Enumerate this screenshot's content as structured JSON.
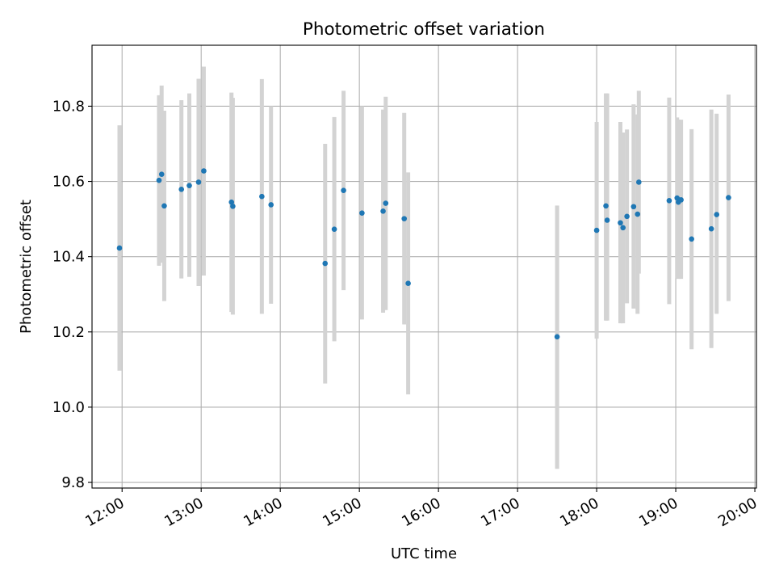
{
  "chart_data": {
    "type": "scatter",
    "title": "Photometric offset variation",
    "xlabel": "UTC time",
    "ylabel": "Photometric offset",
    "x_unit": "hours (UTC)",
    "xlim": [
      11.62,
      20.02
    ],
    "ylim": [
      9.785,
      10.962
    ],
    "grid": true,
    "x_ticks": [
      {
        "value": 12,
        "label": "12:00"
      },
      {
        "value": 13,
        "label": "13:00"
      },
      {
        "value": 14,
        "label": "14:00"
      },
      {
        "value": 15,
        "label": "15:00"
      },
      {
        "value": 16,
        "label": "16:00"
      },
      {
        "value": 17,
        "label": "17:00"
      },
      {
        "value": 18,
        "label": "18:00"
      },
      {
        "value": 19,
        "label": "19:00"
      },
      {
        "value": 20,
        "label": "20:00"
      }
    ],
    "y_ticks": [
      {
        "value": 9.8,
        "label": "9.8"
      },
      {
        "value": 10.0,
        "label": "10.0"
      },
      {
        "value": 10.2,
        "label": "10.2"
      },
      {
        "value": 10.4,
        "label": "10.4"
      },
      {
        "value": 10.6,
        "label": "10.6"
      },
      {
        "value": 10.8,
        "label": "10.8"
      }
    ],
    "marker_color": "#1f77b4",
    "errorbar_color": "#d3d3d3",
    "points": [
      {
        "x": 11.967,
        "y": 10.423,
        "lo": 10.097,
        "hi": 10.749
      },
      {
        "x": 12.467,
        "y": 10.603,
        "lo": 10.376,
        "hi": 10.829
      },
      {
        "x": 12.5,
        "y": 10.619,
        "lo": 10.384,
        "hi": 10.855
      },
      {
        "x": 12.533,
        "y": 10.535,
        "lo": 10.282,
        "hi": 10.788
      },
      {
        "x": 12.75,
        "y": 10.579,
        "lo": 10.342,
        "hi": 10.816
      },
      {
        "x": 12.85,
        "y": 10.589,
        "lo": 10.346,
        "hi": 10.834
      },
      {
        "x": 12.967,
        "y": 10.598,
        "lo": 10.322,
        "hi": 10.873
      },
      {
        "x": 13.033,
        "y": 10.628,
        "lo": 10.35,
        "hi": 10.905
      },
      {
        "x": 13.383,
        "y": 10.545,
        "lo": 10.253,
        "hi": 10.836
      },
      {
        "x": 13.4,
        "y": 10.534,
        "lo": 10.246,
        "hi": 10.822
      },
      {
        "x": 13.767,
        "y": 10.56,
        "lo": 10.248,
        "hi": 10.872
      },
      {
        "x": 13.883,
        "y": 10.538,
        "lo": 10.275,
        "hi": 10.8
      },
      {
        "x": 14.567,
        "y": 10.382,
        "lo": 10.063,
        "hi": 10.7
      },
      {
        "x": 14.683,
        "y": 10.473,
        "lo": 10.175,
        "hi": 10.771
      },
      {
        "x": 14.8,
        "y": 10.576,
        "lo": 10.311,
        "hi": 10.841
      },
      {
        "x": 15.033,
        "y": 10.516,
        "lo": 10.233,
        "hi": 10.8
      },
      {
        "x": 15.3,
        "y": 10.521,
        "lo": 10.251,
        "hi": 10.791
      },
      {
        "x": 15.333,
        "y": 10.542,
        "lo": 10.258,
        "hi": 10.825
      },
      {
        "x": 15.567,
        "y": 10.501,
        "lo": 10.22,
        "hi": 10.782
      },
      {
        "x": 15.617,
        "y": 10.329,
        "lo": 10.034,
        "hi": 10.624
      },
      {
        "x": 17.5,
        "y": 10.187,
        "lo": 9.836,
        "hi": 10.536
      },
      {
        "x": 18.0,
        "y": 10.47,
        "lo": 10.182,
        "hi": 10.758
      },
      {
        "x": 18.117,
        "y": 10.535,
        "lo": 10.23,
        "hi": 10.834
      },
      {
        "x": 18.133,
        "y": 10.497,
        "lo": 10.23,
        "hi": 10.834
      },
      {
        "x": 18.3,
        "y": 10.49,
        "lo": 10.223,
        "hi": 10.758
      },
      {
        "x": 18.333,
        "y": 10.477,
        "lo": 10.223,
        "hi": 10.73
      },
      {
        "x": 18.383,
        "y": 10.507,
        "lo": 10.276,
        "hi": 10.738
      },
      {
        "x": 18.467,
        "y": 10.533,
        "lo": 10.262,
        "hi": 10.805
      },
      {
        "x": 18.517,
        "y": 10.513,
        "lo": 10.248,
        "hi": 10.778
      },
      {
        "x": 18.533,
        "y": 10.598,
        "lo": 10.355,
        "hi": 10.841
      },
      {
        "x": 18.917,
        "y": 10.549,
        "lo": 10.274,
        "hi": 10.823
      },
      {
        "x": 19.017,
        "y": 10.556,
        "lo": 10.342,
        "hi": 10.77
      },
      {
        "x": 19.033,
        "y": 10.545,
        "lo": 10.341,
        "hi": 10.764
      },
      {
        "x": 19.067,
        "y": 10.551,
        "lo": 10.341,
        "hi": 10.764
      },
      {
        "x": 19.2,
        "y": 10.447,
        "lo": 10.154,
        "hi": 10.739
      },
      {
        "x": 19.45,
        "y": 10.474,
        "lo": 10.157,
        "hi": 10.791
      },
      {
        "x": 19.517,
        "y": 10.512,
        "lo": 10.248,
        "hi": 10.78
      },
      {
        "x": 19.667,
        "y": 10.557,
        "lo": 10.282,
        "hi": 10.831
      }
    ]
  }
}
